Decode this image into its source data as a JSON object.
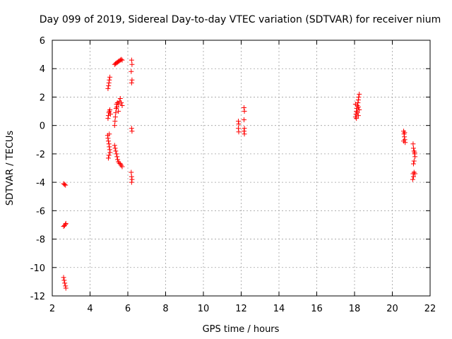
{
  "chart_data": {
    "type": "scatter",
    "title": "Day 099 of 2019, Sidereal Day-to-day VTEC variation (SDTVAR) for receiver nium",
    "xlabel": "GPS time / hours",
    "ylabel": "SDTVAR / TECUs",
    "xlim": [
      2,
      22
    ],
    "ylim": [
      -12,
      6
    ],
    "xticks": [
      2,
      4,
      6,
      8,
      10,
      12,
      14,
      16,
      18,
      20,
      22
    ],
    "yticks": [
      -12,
      -10,
      -8,
      -6,
      -4,
      -2,
      0,
      2,
      4,
      6
    ],
    "grid": true,
    "marker": "+",
    "marker_color": "#ff0000",
    "series": [
      {
        "name": "SDTVAR",
        "points": [
          [
            2.6,
            -4.1
          ],
          [
            2.65,
            -4.15
          ],
          [
            2.7,
            -4.2
          ],
          [
            2.6,
            -7.1
          ],
          [
            2.65,
            -7.05
          ],
          [
            2.7,
            -6.95
          ],
          [
            2.72,
            -6.9
          ],
          [
            2.6,
            -10.7
          ],
          [
            2.63,
            -10.9
          ],
          [
            2.66,
            -11.1
          ],
          [
            2.7,
            -11.3
          ],
          [
            2.72,
            -11.45
          ],
          [
            4.95,
            2.6
          ],
          [
            4.98,
            2.8
          ],
          [
            5.0,
            3.0
          ],
          [
            5.02,
            3.2
          ],
          [
            5.05,
            3.4
          ],
          [
            4.95,
            0.5
          ],
          [
            4.97,
            0.7
          ],
          [
            5.0,
            0.9
          ],
          [
            5.02,
            1.0
          ],
          [
            5.05,
            1.1
          ],
          [
            5.08,
            0.8
          ],
          [
            4.93,
            -0.7
          ],
          [
            4.95,
            -0.9
          ],
          [
            4.97,
            -1.1
          ],
          [
            5.0,
            -1.3
          ],
          [
            5.02,
            -1.5
          ],
          [
            5.04,
            -1.7
          ],
          [
            5.06,
            -1.9
          ],
          [
            5.0,
            -2.1
          ],
          [
            4.97,
            -2.3
          ],
          [
            5.02,
            -0.6
          ],
          [
            5.3,
            4.3
          ],
          [
            5.35,
            4.35
          ],
          [
            5.4,
            4.4
          ],
          [
            5.45,
            4.45
          ],
          [
            5.5,
            4.5
          ],
          [
            5.55,
            4.55
          ],
          [
            5.6,
            4.6
          ],
          [
            5.65,
            4.65
          ],
          [
            5.7,
            4.6
          ],
          [
            5.3,
            0.0
          ],
          [
            5.32,
            0.3
          ],
          [
            5.34,
            0.6
          ],
          [
            5.36,
            0.9
          ],
          [
            5.38,
            1.2
          ],
          [
            5.4,
            1.5
          ],
          [
            5.45,
            1.6
          ],
          [
            5.5,
            1.5
          ],
          [
            5.55,
            1.7
          ],
          [
            5.6,
            1.9
          ],
          [
            5.65,
            1.6
          ],
          [
            5.7,
            1.4
          ],
          [
            5.42,
            1.3
          ],
          [
            5.5,
            1.0
          ],
          [
            5.3,
            -1.4
          ],
          [
            5.33,
            -1.6
          ],
          [
            5.36,
            -1.8
          ],
          [
            5.4,
            -2.0
          ],
          [
            5.43,
            -2.2
          ],
          [
            5.46,
            -2.4
          ],
          [
            5.5,
            -2.55
          ],
          [
            5.55,
            -2.65
          ],
          [
            5.6,
            -2.7
          ],
          [
            5.65,
            -2.8
          ],
          [
            5.7,
            -2.9
          ],
          [
            6.2,
            4.6
          ],
          [
            6.22,
            4.3
          ],
          [
            6.18,
            3.8
          ],
          [
            6.22,
            3.2
          ],
          [
            6.2,
            3.0
          ],
          [
            6.2,
            -0.2
          ],
          [
            6.22,
            -0.4
          ],
          [
            6.18,
            -3.3
          ],
          [
            6.2,
            -3.6
          ],
          [
            6.22,
            -3.8
          ],
          [
            6.2,
            -4.0
          ],
          [
            11.85,
            0.3
          ],
          [
            11.87,
            0.1
          ],
          [
            11.85,
            -0.2
          ],
          [
            11.87,
            -0.45
          ],
          [
            12.15,
            1.25
          ],
          [
            12.17,
            1.0
          ],
          [
            12.15,
            0.4
          ],
          [
            12.17,
            -0.2
          ],
          [
            12.15,
            -0.4
          ],
          [
            12.17,
            -0.6
          ],
          [
            18.05,
            0.6
          ],
          [
            18.08,
            0.8
          ],
          [
            18.1,
            1.0
          ],
          [
            18.12,
            1.2
          ],
          [
            18.15,
            1.4
          ],
          [
            18.18,
            1.6
          ],
          [
            18.2,
            1.8
          ],
          [
            18.22,
            2.0
          ],
          [
            18.25,
            2.2
          ],
          [
            18.1,
            0.5
          ],
          [
            18.15,
            0.9
          ],
          [
            18.2,
            1.3
          ],
          [
            18.05,
            1.5
          ],
          [
            18.25,
            1.1
          ],
          [
            18.2,
            0.7
          ],
          [
            20.6,
            -0.4
          ],
          [
            20.62,
            -0.6
          ],
          [
            20.64,
            -0.8
          ],
          [
            20.66,
            -1.0
          ],
          [
            20.68,
            -1.2
          ],
          [
            20.6,
            -1.1
          ],
          [
            20.65,
            -0.5
          ],
          [
            21.1,
            -1.3
          ],
          [
            21.12,
            -1.6
          ],
          [
            21.15,
            -1.8
          ],
          [
            21.18,
            -2.0
          ],
          [
            21.2,
            -2.2
          ],
          [
            21.15,
            -2.5
          ],
          [
            21.12,
            -2.7
          ],
          [
            21.18,
            -1.9
          ],
          [
            21.1,
            -3.4
          ],
          [
            21.15,
            -3.3
          ],
          [
            21.2,
            -3.4
          ],
          [
            21.12,
            -3.6
          ],
          [
            21.08,
            -3.8
          ]
        ]
      }
    ]
  }
}
